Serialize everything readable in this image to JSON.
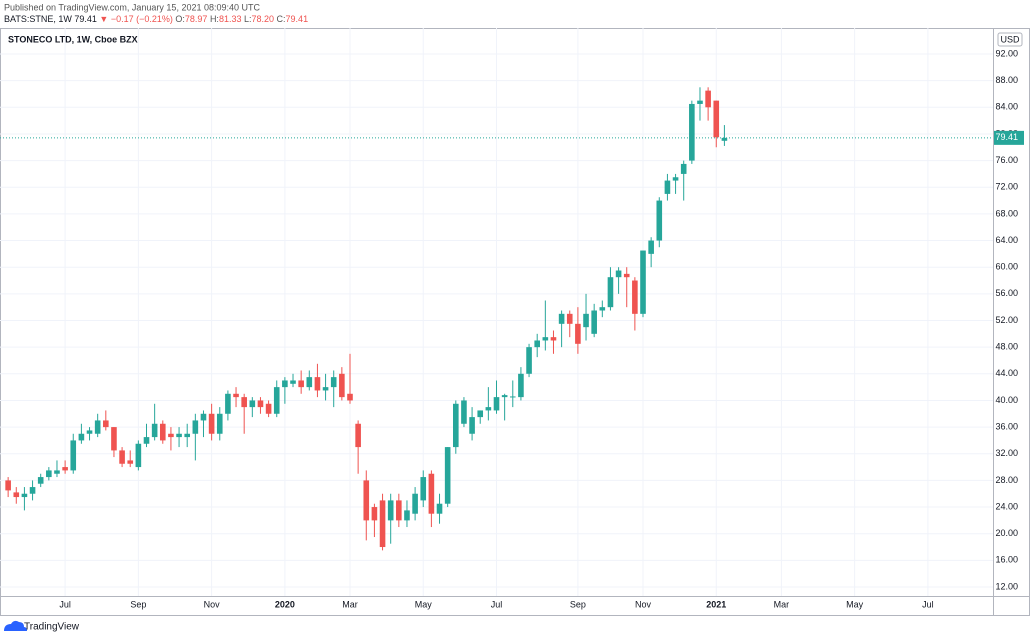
{
  "header": {
    "published": "Published on TradingView.com, January 15, 2021 08:09:40 UTC",
    "symbol": "BATS:STNE, 1W",
    "last": "79.41",
    "change": "▼ −0.17 (−0.21%)",
    "o_label": "O:",
    "o": "78.97",
    "h_label": "H:",
    "h": "81.33",
    "l_label": "L:",
    "l": "78.20",
    "c_label": "C:",
    "c": "79.41"
  },
  "chart_data": {
    "type": "candlestick",
    "title": "STONECO LTD, 1W, Cboe BZX",
    "currency": "USD",
    "up_color": "#26a69a",
    "down_color": "#ef5350",
    "grid": true,
    "last_price": 79.41,
    "open": [
      28,
      26.2,
      25.5,
      26,
      27.5,
      28.5,
      29,
      30,
      29.5,
      34,
      35,
      35,
      37,
      36,
      32.5,
      31,
      30,
      33.5,
      34.5,
      36.5,
      35,
      34.5,
      34.5,
      35,
      37,
      38,
      35,
      38,
      41,
      40.5,
      39,
      40,
      39.5,
      38,
      42,
      42.5,
      43,
      42,
      43.5,
      41.5,
      42,
      44,
      41,
      36.5,
      28,
      24,
      25,
      22,
      25,
      22,
      23,
      25,
      29,
      23,
      24.5,
      33,
      36.5,
      35,
      37.5,
      38.5,
      38.5,
      40.5,
      40.5,
      40.5,
      44,
      48,
      49,
      49.5,
      51.5,
      53,
      51.5,
      51,
      50,
      53.5,
      54,
      58.5,
      59,
      58,
      53,
      62,
      64,
      71,
      73,
      74,
      76,
      84.5,
      86.5,
      85,
      78.97
    ],
    "high": [
      28.5,
      27,
      27,
      28,
      29,
      30,
      31,
      31,
      35,
      36.5,
      36,
      38,
      38.5,
      36,
      33,
      32.5,
      34,
      36.5,
      39.5,
      37,
      36,
      36,
      36.5,
      38,
      38.5,
      39.5,
      39,
      41.5,
      42,
      41,
      40.5,
      40.5,
      40,
      43,
      43.5,
      44,
      44.5,
      44.5,
      45.5,
      44,
      44.5,
      45,
      47,
      37,
      29.5,
      24.5,
      26,
      26,
      26,
      25,
      27,
      29.5,
      29.5,
      26,
      33,
      40,
      40.5,
      39,
      38.5,
      42,
      43,
      41,
      43,
      45,
      48.5,
      50,
      55,
      50.5,
      53.5,
      53.5,
      54,
      56,
      54.5,
      55,
      60,
      60,
      60,
      58.5,
      62.5,
      64.5,
      70.5,
      74,
      74,
      76,
      85,
      87,
      87,
      85,
      81.33
    ],
    "low": [
      25.5,
      24.5,
      23.5,
      25,
      27,
      28,
      28.5,
      29,
      29,
      33.5,
      34,
      34.5,
      35.5,
      31.5,
      30,
      30,
      29.5,
      33,
      34,
      33.5,
      32.5,
      33,
      33,
      31,
      34.5,
      34,
      34,
      37,
      39,
      35,
      37.5,
      38,
      37.5,
      37.5,
      39.5,
      42,
      41,
      41.5,
      40.5,
      40,
      39,
      40,
      39.5,
      29,
      19,
      19.5,
      17.5,
      18.5,
      21,
      21,
      22,
      24,
      21,
      21.5,
      24,
      32,
      36,
      34,
      36.5,
      37,
      38,
      37,
      39,
      40,
      43.5,
      46.5,
      47.5,
      47,
      48,
      49.5,
      47,
      49,
      49.5,
      52.5,
      53.5,
      56,
      54,
      50.5,
      52.5,
      60,
      63,
      70,
      71,
      70,
      75.5,
      82,
      82,
      78,
      78.2
    ],
    "close": [
      26.5,
      25.5,
      26,
      27,
      28.5,
      29.5,
      29.5,
      29.5,
      34,
      35,
      35.5,
      37,
      36,
      32.5,
      30.5,
      30.5,
      33.5,
      34.5,
      36.5,
      34,
      34.5,
      35,
      35,
      37,
      38,
      35,
      38,
      41,
      40.5,
      39,
      40,
      39,
      38,
      42,
      43,
      43,
      42,
      43.5,
      41.5,
      42,
      43.5,
      40.5,
      40,
      33,
      22,
      22,
      18,
      25,
      22,
      23.5,
      26,
      28.5,
      23,
      24.5,
      33,
      39.5,
      40,
      37.5,
      38.5,
      39,
      40.5,
      40.8,
      40.6,
      44,
      48,
      49,
      49.5,
      49,
      53,
      51.5,
      48.5,
      53,
      53.5,
      54,
      58.5,
      59.5,
      58.5,
      53,
      62.5,
      64,
      70,
      73,
      73.5,
      75.5,
      84.5,
      85,
      84,
      79.5,
      79.41
    ],
    "xlim": [
      -1,
      121
    ],
    "xticks": [
      {
        "value": 7,
        "label": "Jul"
      },
      {
        "value": 16,
        "label": "Sep"
      },
      {
        "value": 25,
        "label": "Nov"
      },
      {
        "value": 34,
        "label": "2020"
      },
      {
        "value": 42,
        "label": "Mar"
      },
      {
        "value": 51,
        "label": "May"
      },
      {
        "value": 60,
        "label": "Jul"
      },
      {
        "value": 70,
        "label": "Sep"
      },
      {
        "value": 78,
        "label": "Nov"
      },
      {
        "value": 87,
        "label": "2021"
      },
      {
        "value": 95,
        "label": "Mar"
      },
      {
        "value": 104,
        "label": "May"
      },
      {
        "value": 113,
        "label": "Jul"
      }
    ],
    "ylim": [
      10.65,
      95.9
    ],
    "yticks": [
      {
        "value": 12,
        "label": "12.00"
      },
      {
        "value": 16,
        "label": "16.00"
      },
      {
        "value": 20,
        "label": "20.00"
      },
      {
        "value": 24,
        "label": "24.00"
      },
      {
        "value": 28,
        "label": "28.00"
      },
      {
        "value": 32,
        "label": "32.00"
      },
      {
        "value": 36,
        "label": "36.00"
      },
      {
        "value": 40,
        "label": "40.00"
      },
      {
        "value": 44,
        "label": "44.00"
      },
      {
        "value": 48,
        "label": "48.00"
      },
      {
        "value": 52,
        "label": "52.00"
      },
      {
        "value": 56,
        "label": "56.00"
      },
      {
        "value": 60,
        "label": "60.00"
      },
      {
        "value": 64,
        "label": "64.00"
      },
      {
        "value": 68,
        "label": "68.00"
      },
      {
        "value": 72,
        "label": "72.00"
      },
      {
        "value": 76,
        "label": "76.00"
      },
      {
        "value": 80,
        "label": "80.00"
      },
      {
        "value": 84,
        "label": "84.00"
      },
      {
        "value": 88,
        "label": "88.00"
      },
      {
        "value": 92,
        "label": "92.00"
      }
    ]
  },
  "footer": {
    "brand": "TradingView"
  }
}
